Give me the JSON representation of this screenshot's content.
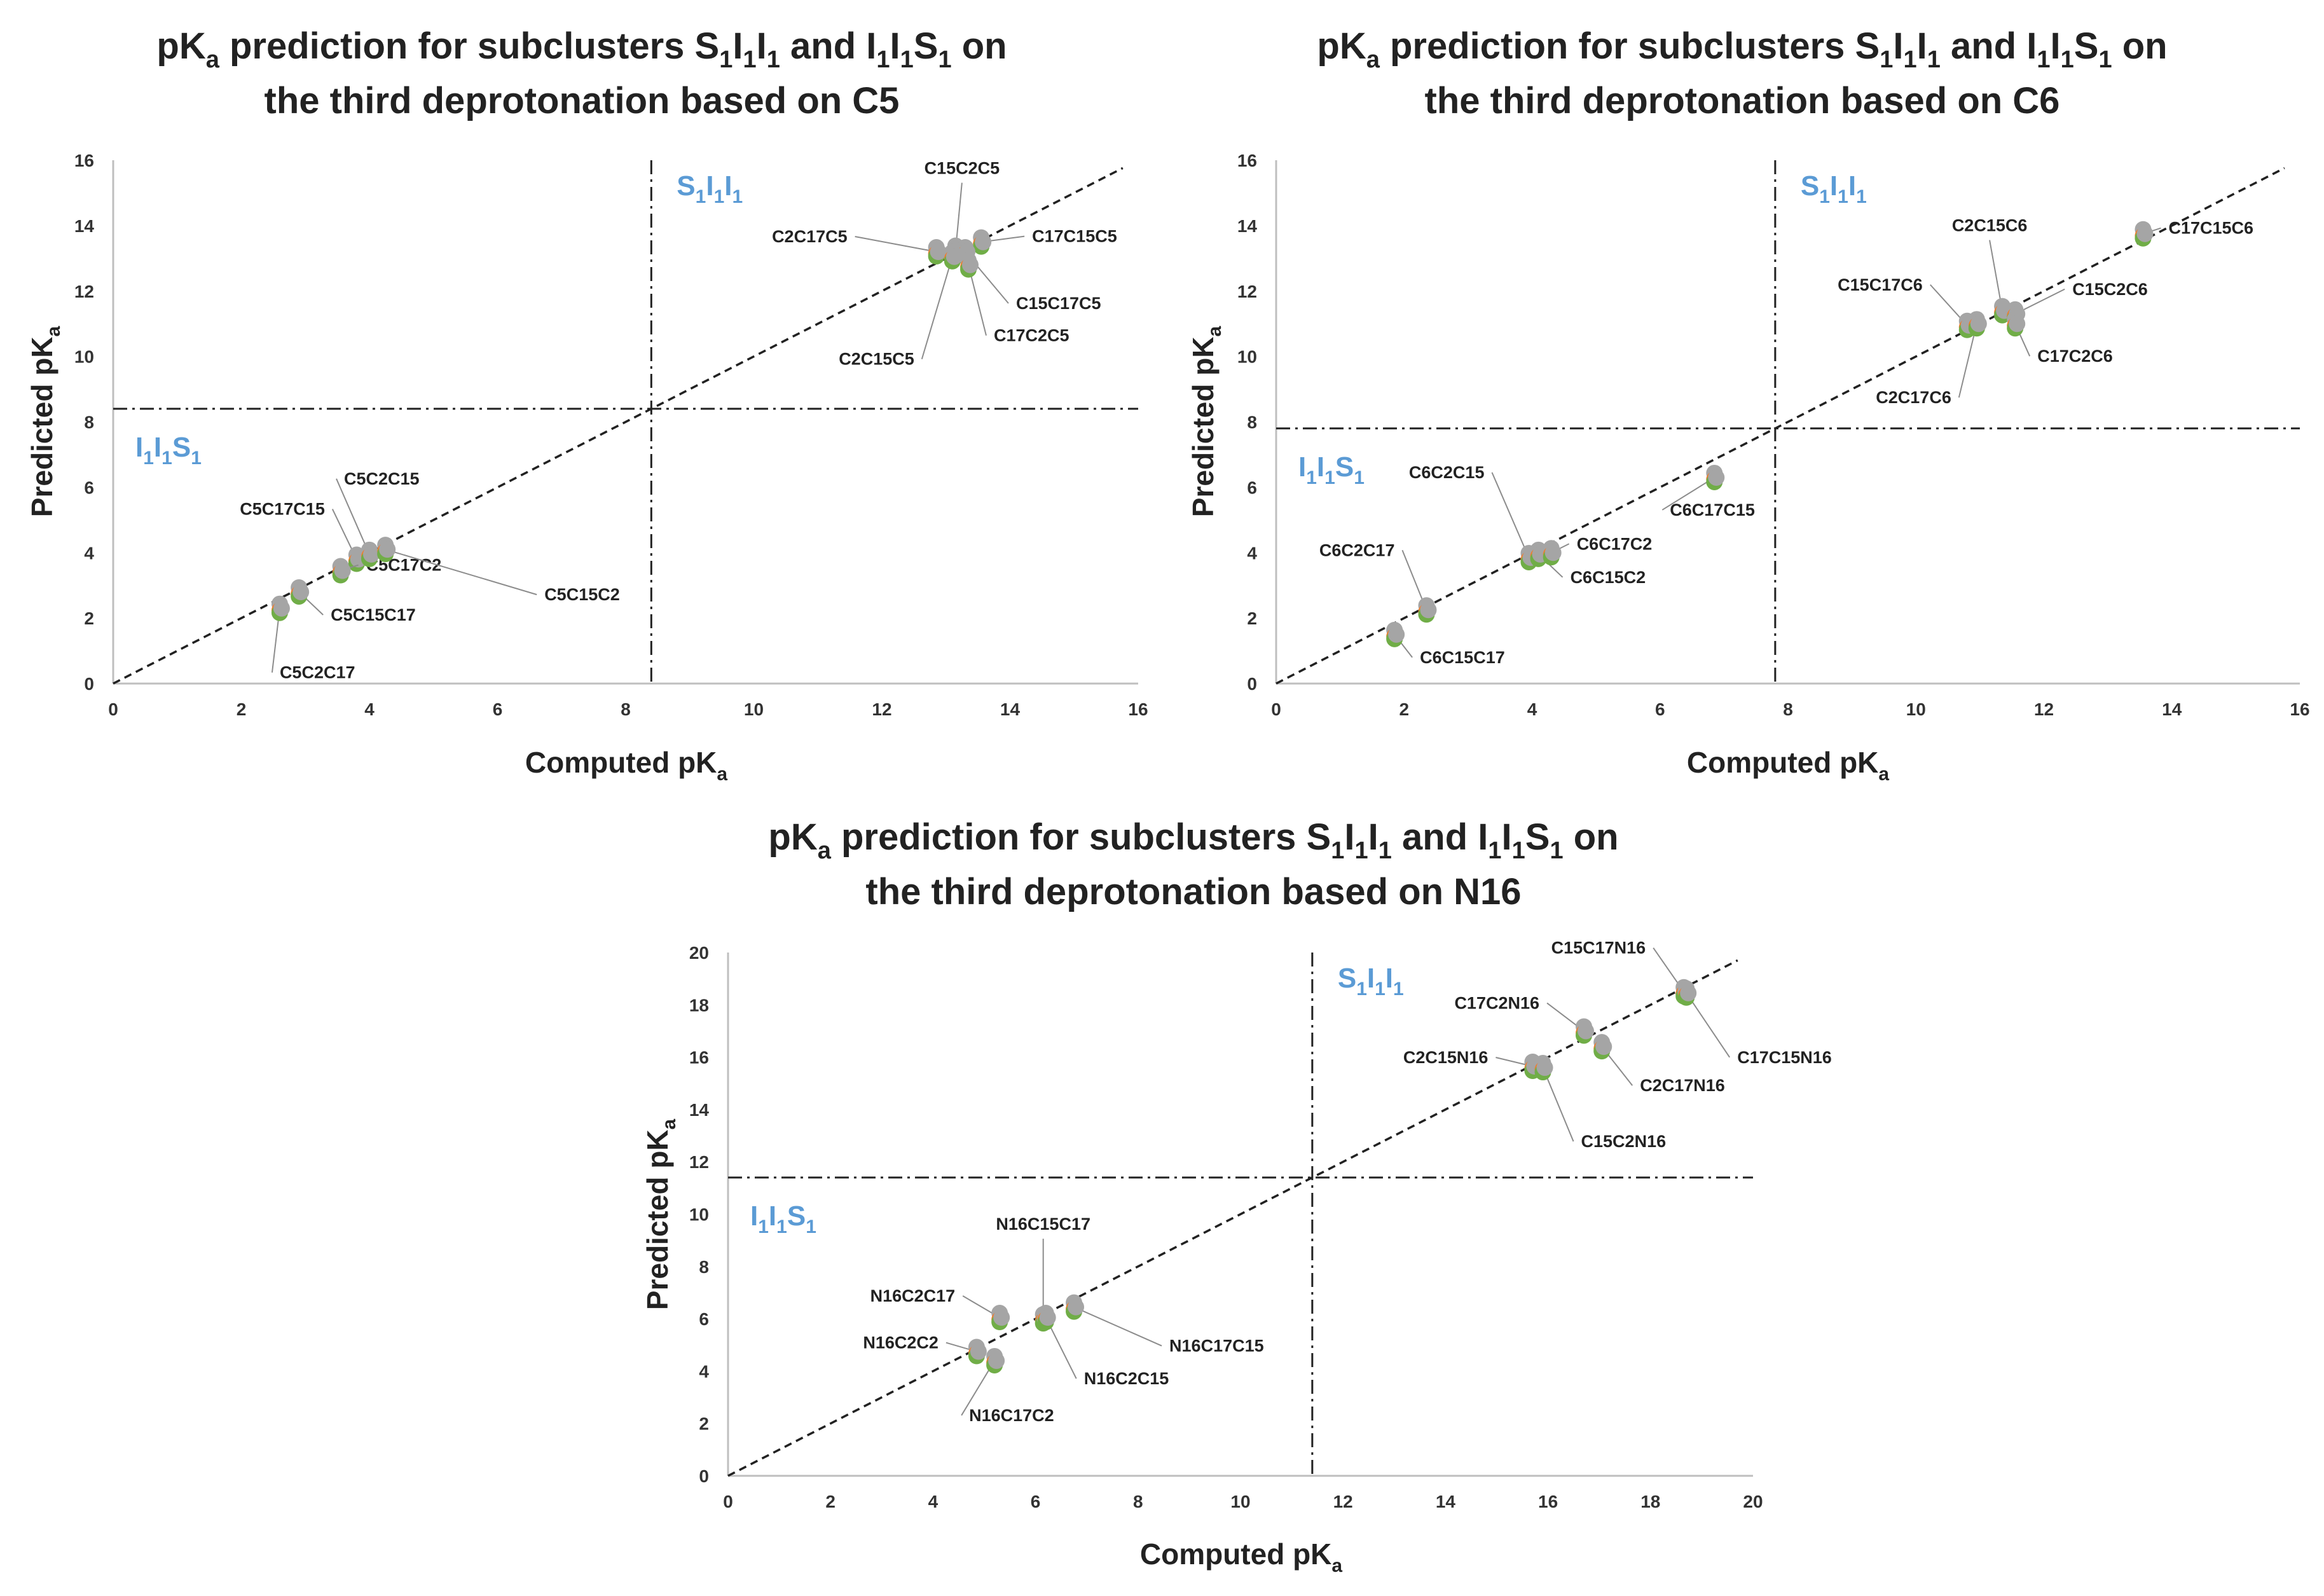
{
  "colors": {
    "gray": "#a5a5a5",
    "orange": "#ed7d31",
    "green": "#70ad47",
    "blue": "#4472c4",
    "region": "#5b9bd5"
  },
  "chart_data": [
    {
      "type": "scatter",
      "title_parts": [
        "pK",
        "a",
        " prediction for subclusters ",
        "S",
        "1",
        "I",
        "1",
        "I",
        "1",
        " and ",
        "I",
        "1",
        "I",
        "1",
        "S",
        "1",
        " on"
      ],
      "title_line2": "the third deprotonation based on C5",
      "xlabel": "Computed pK",
      "xlabel_sub": "a",
      "ylabel": "Predicted pK",
      "ylabel_sub": "a",
      "xlim": [
        0,
        16
      ],
      "ylim": [
        0,
        16
      ],
      "ticks": [
        0,
        2,
        4,
        6,
        8,
        10,
        12,
        14,
        16
      ],
      "threshold": 8.4,
      "region_upper": [
        "S",
        "1",
        "I",
        "1",
        "I",
        "1"
      ],
      "region_lower": [
        "I",
        "1",
        "I",
        "1",
        "S",
        "1"
      ],
      "diagonal": true,
      "points": [
        {
          "label": "C5C2C17",
          "x": 2.6,
          "y": 2.3
        },
        {
          "label": "C5C15C17",
          "x": 2.9,
          "y": 2.8
        },
        {
          "label": "C5C17C15",
          "x": 3.8,
          "y": 3.8
        },
        {
          "label": "C5C17C2",
          "x": 3.55,
          "y": 3.45
        },
        {
          "label": "C5C2C15",
          "x": 4.0,
          "y": 3.95
        },
        {
          "label": "C5C15C2",
          "x": 4.25,
          "y": 4.1
        },
        {
          "label": "C2C17C5",
          "x": 12.85,
          "y": 13.2
        },
        {
          "label": "C15C2C5",
          "x": 13.15,
          "y": 13.25
        },
        {
          "label": "C17C15C5",
          "x": 13.55,
          "y": 13.5
        },
        {
          "label": "C15C17C5",
          "x": 13.3,
          "y": 13.2
        },
        {
          "label": "C17C2C5",
          "x": 13.35,
          "y": 12.8
        },
        {
          "label": "C2C15C5",
          "x": 13.1,
          "y": 13.05
        }
      ]
    },
    {
      "type": "scatter",
      "title_parts": [
        "pK",
        "a",
        " prediction for subclusters ",
        "S",
        "1",
        "I",
        "1",
        "I",
        "1",
        " and ",
        "I",
        "1",
        "I",
        "1",
        "S",
        "1",
        " on"
      ],
      "title_line2": "the third deprotonation based on C6",
      "xlabel": "Computed pK",
      "xlabel_sub": "a",
      "ylabel": "Predicted pK",
      "ylabel_sub": "a",
      "xlim": [
        0,
        16
      ],
      "ylim": [
        0,
        16
      ],
      "ticks": [
        0,
        2,
        4,
        6,
        8,
        10,
        12,
        14,
        16
      ],
      "threshold": 7.8,
      "region_upper": [
        "S",
        "1",
        "I",
        "1",
        "I",
        "1"
      ],
      "region_lower": [
        "I",
        "1",
        "I",
        "1",
        "S",
        "1"
      ],
      "diagonal": true,
      "points": [
        {
          "label": "C6C15C17",
          "x": 1.85,
          "y": 1.5
        },
        {
          "label": "C6C2C17",
          "x": 2.35,
          "y": 2.25
        },
        {
          "label": "C6C2C15",
          "x": 3.95,
          "y": 3.85
        },
        {
          "label": "C6C15C2",
          "x": 4.1,
          "y": 3.95
        },
        {
          "label": "C6C17C2",
          "x": 4.3,
          "y": 4.0
        },
        {
          "label": "C6C17C15",
          "x": 6.85,
          "y": 6.3
        },
        {
          "label": "C15C17C6",
          "x": 10.8,
          "y": 10.95
        },
        {
          "label": "C2C17C6",
          "x": 10.95,
          "y": 11.0
        },
        {
          "label": "C2C15C6",
          "x": 11.35,
          "y": 11.4
        },
        {
          "label": "C15C2C6",
          "x": 11.55,
          "y": 11.3
        },
        {
          "label": "C17C2C6",
          "x": 11.55,
          "y": 11.0
        },
        {
          "label": "C17C15C6",
          "x": 13.55,
          "y": 13.75
        }
      ]
    },
    {
      "type": "scatter",
      "title_parts": [
        "pK",
        "a",
        " prediction for subclusters ",
        "S",
        "1",
        "I",
        "1",
        "I",
        "1",
        " and ",
        "I",
        "1",
        "I",
        "1",
        "S",
        "1",
        " on"
      ],
      "title_line2": "the third deprotonation based on N16",
      "xlabel": "Computed pK",
      "xlabel_sub": "a",
      "ylabel": "Predicted pK",
      "ylabel_sub": "a",
      "xlim": [
        0,
        20
      ],
      "ylim": [
        0,
        20
      ],
      "ticks": [
        0,
        2,
        4,
        6,
        8,
        10,
        12,
        14,
        16,
        18,
        20
      ],
      "threshold": 11.4,
      "region_upper": [
        "S",
        "1",
        "I",
        "1",
        "I",
        "1"
      ],
      "region_lower": [
        "I",
        "1",
        "I",
        "1",
        "S",
        "1"
      ],
      "diagonal": true,
      "points": [
        {
          "label": "N16C2C2",
          "x": 4.85,
          "y": 4.75
        },
        {
          "label": "N16C17C2",
          "x": 5.2,
          "y": 4.4
        },
        {
          "label": "N16C2C17",
          "x": 5.3,
          "y": 6.05
        },
        {
          "label": "N16C15C17",
          "x": 6.15,
          "y": 6.0
        },
        {
          "label": "N16C2C15",
          "x": 6.2,
          "y": 6.05
        },
        {
          "label": "N16C17C15",
          "x": 6.75,
          "y": 6.45
        },
        {
          "label": "C2C15N16",
          "x": 15.7,
          "y": 15.65
        },
        {
          "label": "C15C2N16",
          "x": 15.9,
          "y": 15.6
        },
        {
          "label": "C17C2N16",
          "x": 16.7,
          "y": 17.0
        },
        {
          "label": "C2C17N16",
          "x": 17.05,
          "y": 16.4
        },
        {
          "label": "C15C17N16",
          "x": 18.65,
          "y": 18.5
        },
        {
          "label": "C17C15N16",
          "x": 18.7,
          "y": 18.45
        }
      ]
    }
  ]
}
